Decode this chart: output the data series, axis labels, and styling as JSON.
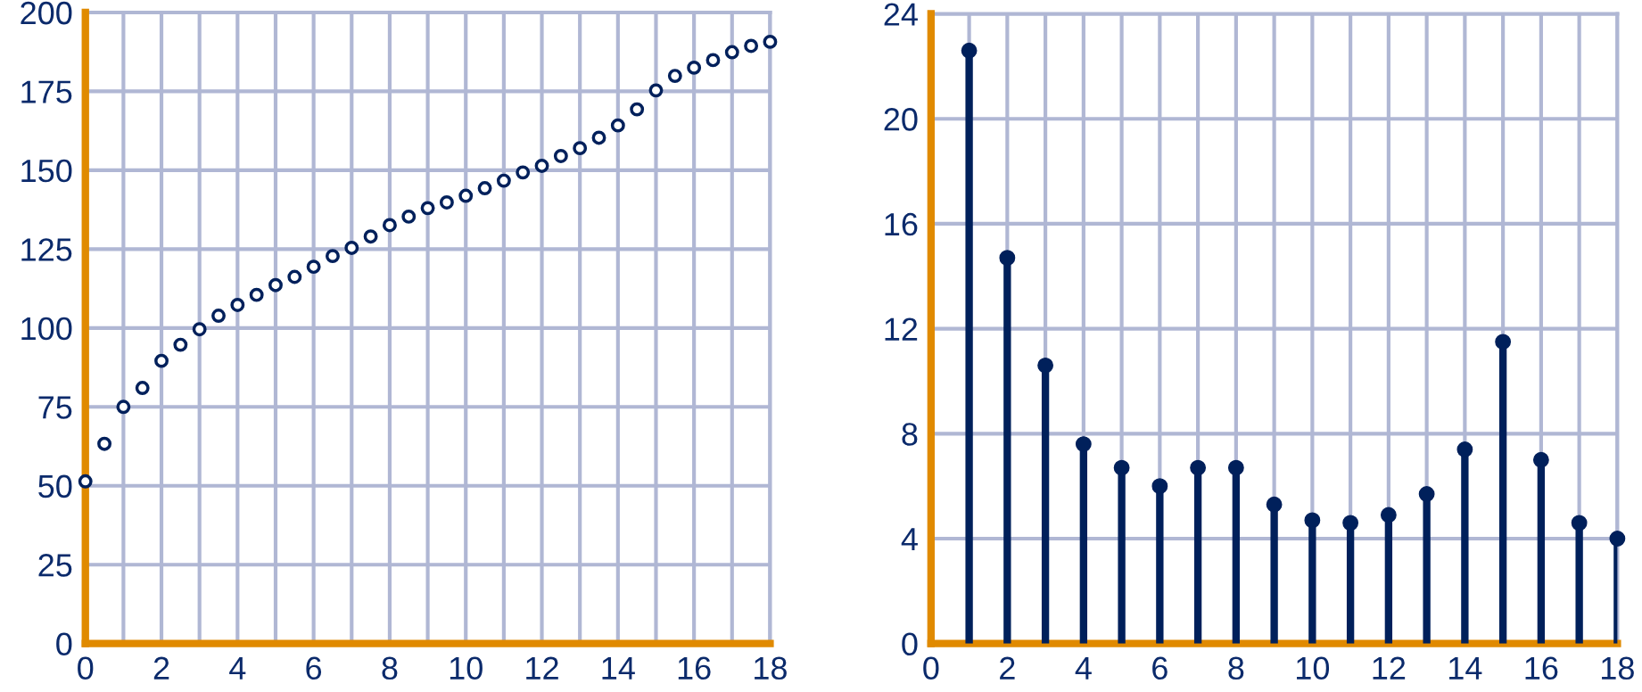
{
  "chart_data": [
    {
      "type": "scatter",
      "x": [
        0,
        0.5,
        1,
        1.5,
        2,
        2.5,
        3,
        3.5,
        4,
        4.5,
        5,
        5.5,
        6,
        6.5,
        7,
        7.5,
        8,
        8.5,
        9,
        9.5,
        10,
        10.5,
        11,
        11.5,
        12,
        12.5,
        13,
        13.5,
        14,
        14.5,
        15,
        15.5,
        16,
        16.5,
        17,
        17.5,
        18
      ],
      "values": [
        51.4,
        63.3,
        75,
        81,
        89.6,
        94.7,
        99.6,
        103.9,
        107.3,
        110.5,
        113.6,
        116.2,
        119.4,
        122.8,
        125.4,
        129,
        132.6,
        135.3,
        138,
        139.8,
        141.9,
        144.3,
        146.7,
        149.3,
        151.4,
        154.5,
        157,
        160.3,
        164.2,
        169.3,
        175.3,
        179.9,
        182.5,
        184.9,
        187.4,
        189.4,
        190.7
      ],
      "color": "#00205b",
      "marker": "circle",
      "grid": true,
      "xlim": [
        0,
        18
      ],
      "ylim": [
        0,
        200
      ],
      "xticks": [
        0,
        {
          "value": 1,
          "label": null
        },
        2,
        {
          "value": 3,
          "label": null
        },
        4,
        {
          "value": 5,
          "label": null
        },
        6,
        {
          "value": 7,
          "label": null
        },
        8,
        {
          "value": 9,
          "label": null
        },
        10,
        {
          "value": 11,
          "label": null
        },
        12,
        {
          "value": 13,
          "label": null
        },
        14,
        {
          "value": 15,
          "label": null
        },
        16,
        {
          "value": 17,
          "label": null
        },
        18
      ],
      "yticks": [
        0,
        25,
        50,
        75,
        100,
        125,
        150,
        175,
        200
      ]
    },
    {
      "type": "lollipop",
      "x": [
        1,
        2,
        3,
        4,
        5,
        6,
        7,
        8,
        9,
        10,
        11,
        12,
        13,
        14,
        15,
        16,
        17,
        18
      ],
      "values": [
        22.6,
        14.7,
        10.6,
        7.6,
        6.7,
        6.0,
        6.7,
        6.7,
        5.3,
        4.7,
        4.6,
        4.9,
        5.7,
        7.4,
        11.5,
        7.0,
        4.6,
        4.0
      ],
      "color": "#00205b",
      "marker": "circle",
      "grid": true,
      "xlim": [
        0,
        18
      ],
      "ylim": [
        0,
        24
      ],
      "xticks": [
        0,
        {
          "value": 1,
          "label": null
        },
        2,
        {
          "value": 3,
          "label": null
        },
        4,
        {
          "value": 5,
          "label": null
        },
        6,
        {
          "value": 7,
          "label": null
        },
        8,
        {
          "value": 9,
          "label": null
        },
        10,
        {
          "value": 11,
          "label": null
        },
        12,
        {
          "value": 13,
          "label": null
        },
        14,
        {
          "value": 15,
          "label": null
        },
        16,
        {
          "value": 17,
          "label": null
        },
        18
      ],
      "yticks": [
        0,
        4,
        8,
        12,
        16,
        20,
        24
      ]
    }
  ]
}
